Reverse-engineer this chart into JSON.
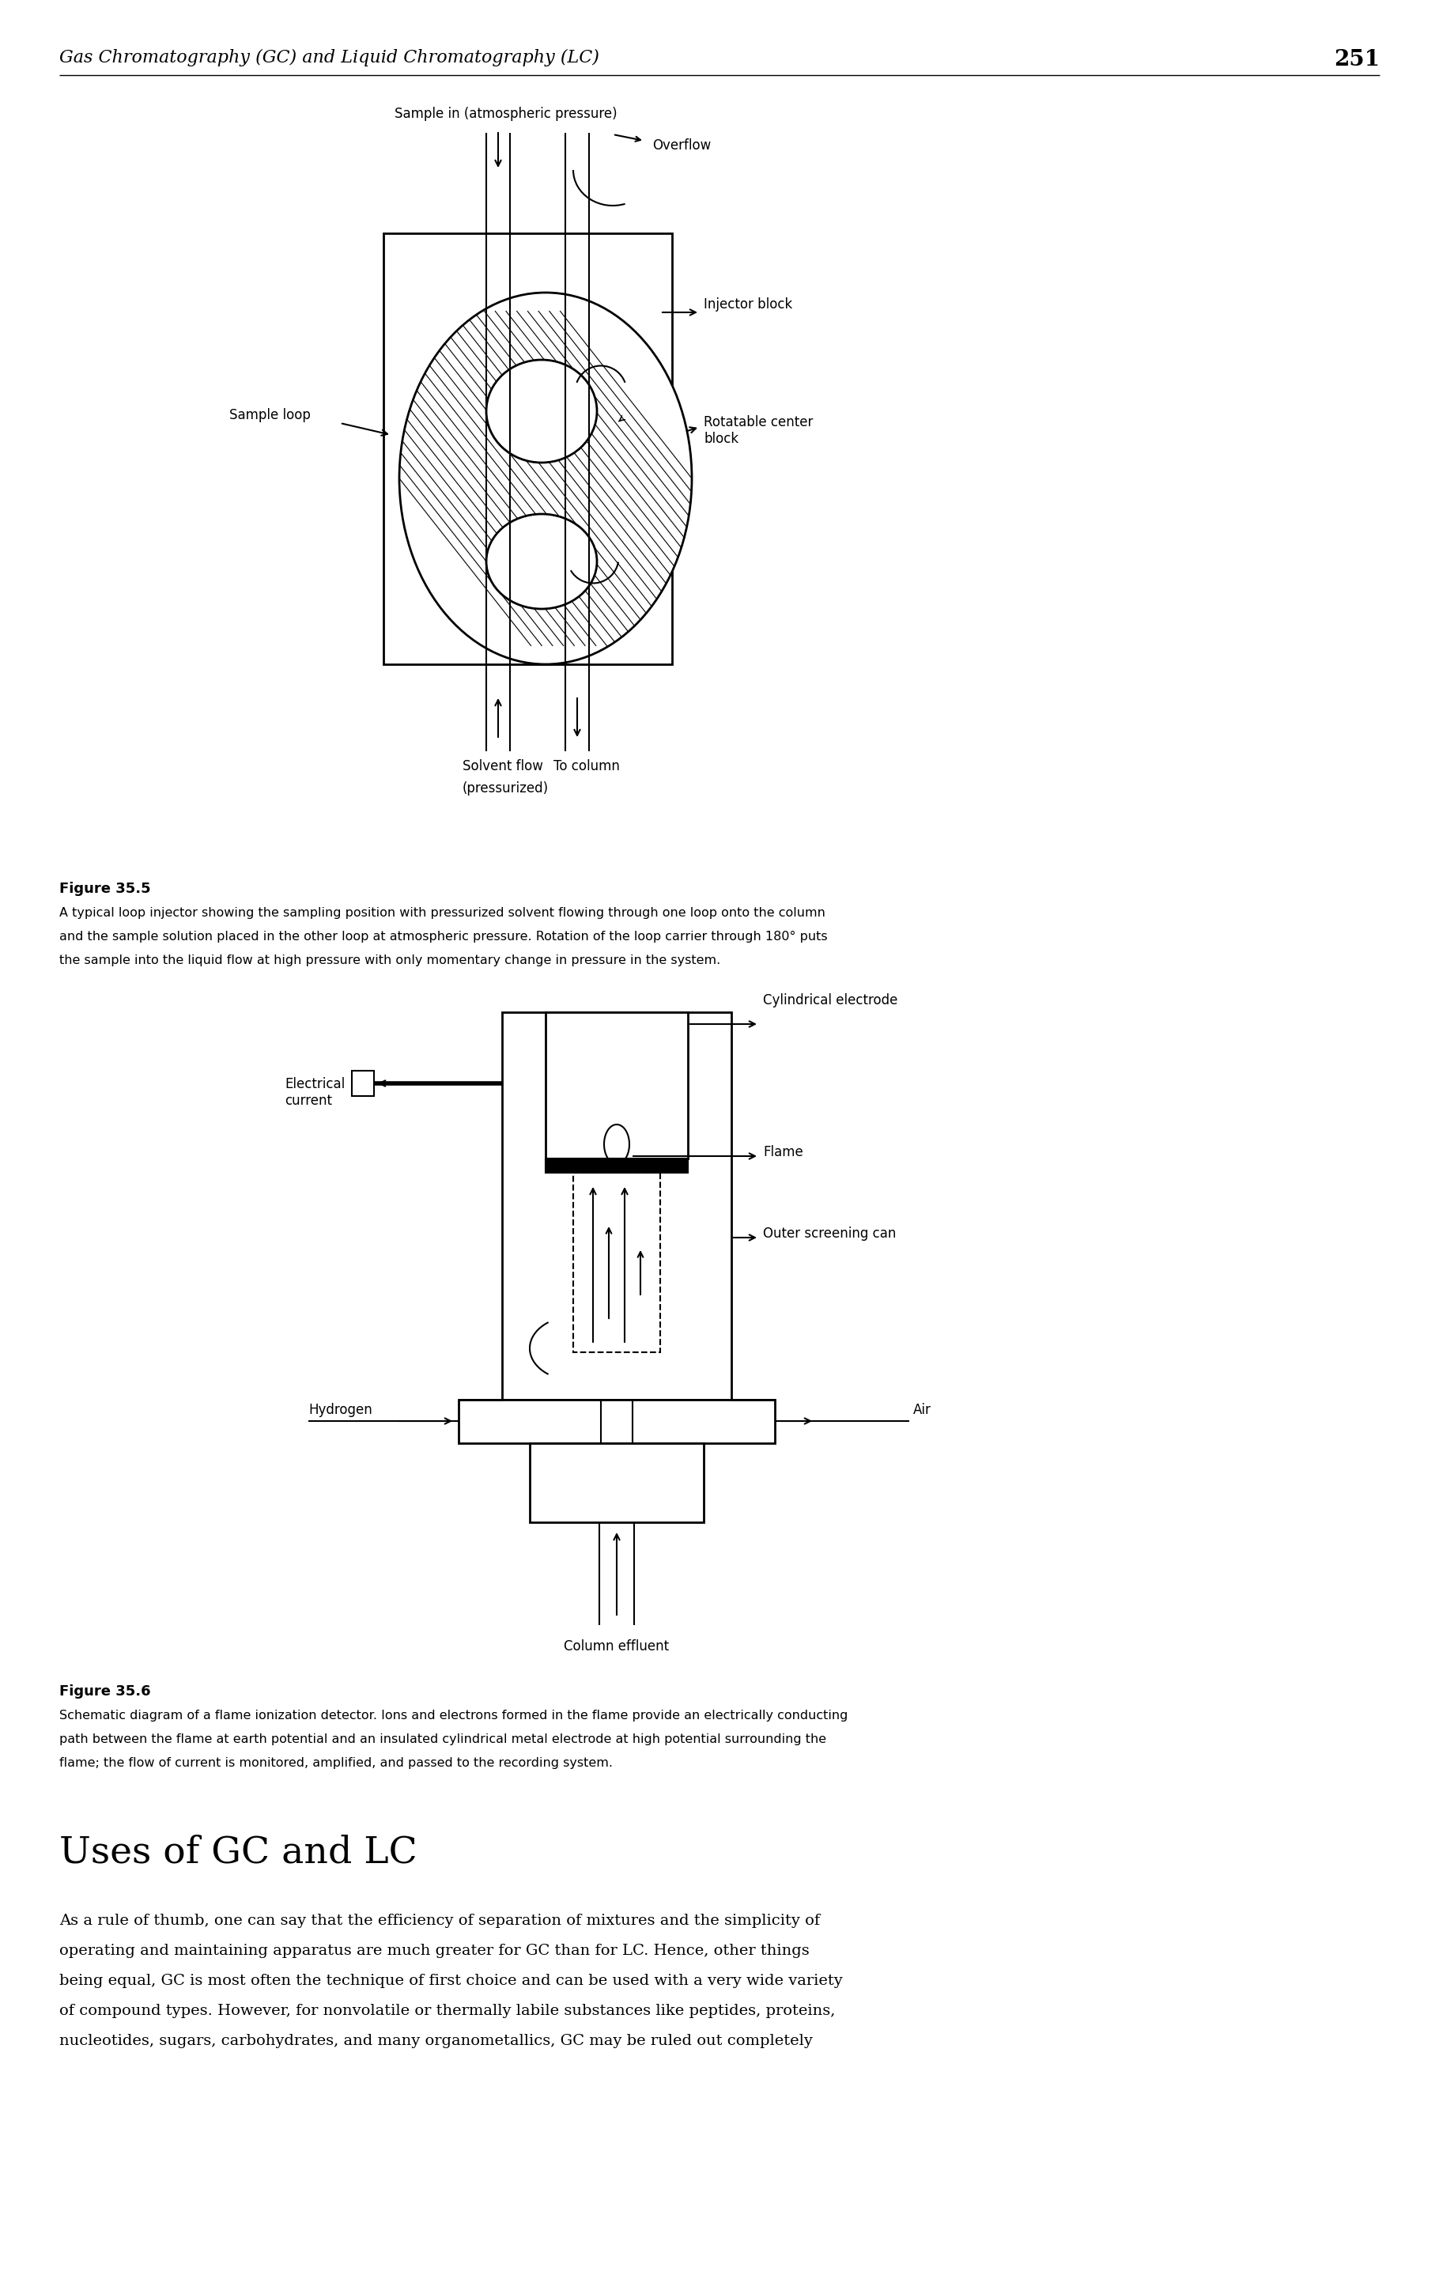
{
  "page_header": "Gas Chromatography (GC) and Liquid Chromatography (LC)",
  "page_number": "251",
  "fig1_title": "Figure 35.5",
  "fig1_caption_line1": "A typical loop injector showing the sampling position with pressurized solvent flowing through one loop onto the column",
  "fig1_caption_line2": "and the sample solution placed in the other loop at atmospheric pressure. Rotation of the loop carrier through 180° puts",
  "fig1_caption_line3": "the sample into the liquid flow at high pressure with only momentary change in pressure in the system.",
  "fig2_title": "Figure 35.6",
  "fig2_caption_line1": "Schematic diagram of a flame ionization detector. Ions and electrons formed in the flame provide an electrically conducting",
  "fig2_caption_line2": "path between the flame at earth potential and an insulated cylindrical metal electrode at high potential surrounding the",
  "fig2_caption_line3": "flame; the flow of current is monitored, amplified, and passed to the recording system.",
  "section_title": "Uses of GC and LC",
  "section_line1": "As a rule of thumb, one can say that the efficiency of separation of mixtures and the simplicity of",
  "section_line2": "operating and maintaining apparatus are much greater for GC than for LC. Hence, other things",
  "section_line3": "being equal, GC is most often the technique of first choice and can be used with a very wide variety",
  "section_line4": "of compound types. However, for nonvolatile or thermally labile substances like peptides, proteins,",
  "section_line5": "nucleotides, sugars, carbohydrates, and many organometallics, GC may be ruled out completely",
  "bg_color": "#ffffff",
  "line_color": "#000000"
}
